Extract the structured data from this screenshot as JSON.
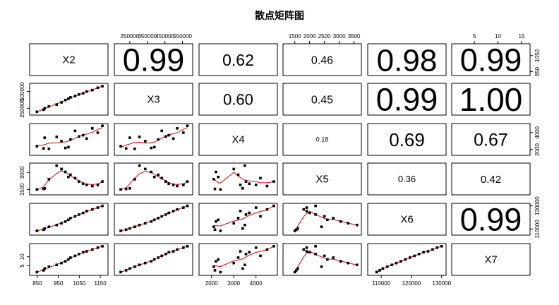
{
  "title": "散点矩阵图",
  "chart_data": {
    "type": "scatter-matrix",
    "title": "散点矩阵图",
    "variables": [
      "X2",
      "X3",
      "X4",
      "X5",
      "X6",
      "X7"
    ],
    "correlations": [
      [
        null,
        0.99,
        0.62,
        0.46,
        0.98,
        0.99
      ],
      [
        0.99,
        null,
        0.6,
        0.45,
        0.99,
        1.0
      ],
      [
        0.62,
        0.6,
        null,
        0.18,
        0.69,
        0.67
      ],
      [
        0.46,
        0.45,
        0.18,
        null,
        0.36,
        0.42
      ],
      [
        0.98,
        0.99,
        0.69,
        0.36,
        null,
        0.99
      ],
      [
        0.99,
        1.0,
        0.67,
        0.42,
        0.99,
        null
      ]
    ],
    "corr_labels": [
      [
        null,
        "0.99",
        "0.62",
        "0.46",
        "0.98",
        "0.99"
      ],
      [
        null,
        null,
        "0.60",
        "0.45",
        "0.99",
        "1.00"
      ],
      [
        null,
        null,
        null,
        "0.18",
        "0.69",
        "0.67"
      ],
      [
        null,
        null,
        null,
        null,
        "0.36",
        "0.42"
      ],
      [
        null,
        null,
        null,
        null,
        null,
        "0.99"
      ],
      [
        null,
        null,
        null,
        null,
        null,
        null
      ]
    ],
    "ranges": [
      [
        820,
        1180
      ],
      [
        170000,
        600000
      ],
      [
        1500,
        4900
      ],
      [
        1150,
        3700
      ],
      [
        106000,
        131000
      ],
      [
        0.5,
        16.5
      ]
    ],
    "axes": {
      "top": [
        null,
        {
          "ticks": [
            250000,
            350000,
            450000,
            550000
          ],
          "labels": [
            "250000",
            "350000",
            "450000",
            "550000"
          ]
        },
        null,
        {
          "ticks": [
            1500,
            2000,
            2500,
            3000,
            3500
          ],
          "labels": [
            "1500",
            "2000",
            "2500",
            "3000",
            "3500"
          ]
        },
        null,
        {
          "ticks": [
            5,
            10,
            15
          ],
          "labels": [
            "5",
            "10",
            "15"
          ]
        }
      ],
      "bottom": [
        {
          "ticks": [
            850,
            950,
            1050,
            1150
          ],
          "labels": [
            "850",
            "950",
            "1050",
            "1150"
          ]
        },
        null,
        {
          "ticks": [
            2000,
            3000,
            4000
          ],
          "labels": [
            "2000",
            "3000",
            "4000"
          ]
        },
        null,
        {
          "ticks": [
            110000,
            120000,
            130000
          ],
          "labels": [
            "110000",
            "120000",
            "130000"
          ]
        },
        null
      ],
      "left": [
        null,
        {
          "ticks": [
            250000,
            500000
          ],
          "labels": [
            "250000",
            "500000"
          ]
        },
        null,
        {
          "ticks": [
            1500,
            3000
          ],
          "labels": [
            "1500",
            "3000"
          ]
        },
        null,
        {
          "ticks": [
            5,
            10
          ],
          "labels": [
            "5",
            "10"
          ]
        }
      ],
      "right": [
        {
          "ticks": [
            850,
            1050
          ],
          "labels": [
            "850",
            "1050"
          ]
        },
        null,
        {
          "ticks": [
            2000,
            4000
          ],
          "labels": [
            "2000",
            "4000"
          ]
        },
        null,
        {
          "ticks": [
            110000,
            130000
          ],
          "labels": [
            "110000",
            "130000"
          ]
        },
        null
      ]
    },
    "observations": {
      "X2": [
        848,
        880,
        885,
        905,
        942,
        965,
        984,
        998,
        1008,
        1030,
        1048,
        1068,
        1085,
        1112,
        1138,
        1160
      ],
      "X3": [
        198000,
        229000,
        250000,
        278000,
        305000,
        338000,
        372000,
        390000,
        412000,
        432000,
        455000,
        472000,
        498000,
        520000,
        555000,
        578000
      ],
      "X4": [
        2400,
        2150,
        3400,
        2100,
        3500,
        3000,
        2200,
        2300,
        3200,
        4200,
        3550,
        3700,
        3300,
        4500,
        4000,
        4800
      ],
      "X5": [
        1500,
        1550,
        1600,
        2400,
        3600,
        3300,
        3050,
        2600,
        2800,
        2500,
        2200,
        2000,
        1900,
        1800,
        1900,
        2200
      ],
      "X6": [
        108500,
        109500,
        110500,
        112000,
        113500,
        115000,
        116500,
        118000,
        119500,
        121000,
        122500,
        124000,
        125500,
        127000,
        128500,
        130000
      ],
      "X7": [
        1.5,
        2.5,
        3.5,
        4.5,
        5.5,
        6.5,
        7.5,
        8.5,
        9.5,
        10.5,
        11.5,
        12.5,
        13.0,
        14.0,
        15.0,
        15.8
      ]
    }
  }
}
